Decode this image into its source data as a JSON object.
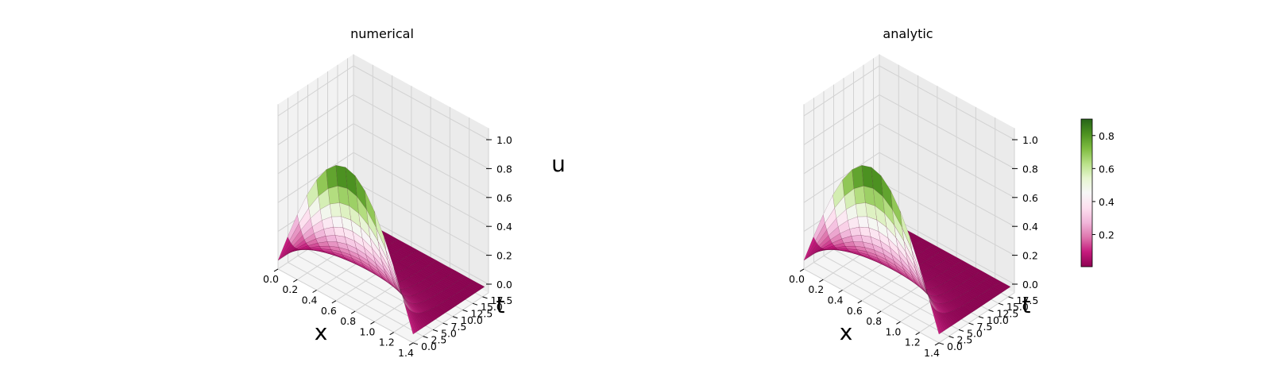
{
  "chart_data": [
    {
      "type": "surface3d",
      "title": "numerical",
      "xlabel": "x",
      "ylabel": "t",
      "zlabel": "u",
      "xlim": [
        0,
        1.4
      ],
      "ylim": [
        0,
        17.5
      ],
      "zlim": [
        0,
        1
      ],
      "xticks": [
        "0.0",
        "0.2",
        "0.4",
        "0.6",
        "0.8",
        "1.0",
        "1.2",
        "1.4"
      ],
      "yticks": [
        "0.0",
        "2.5",
        "5.0",
        "7.5",
        "10.0",
        "12.5",
        "15.0",
        "17.5"
      ],
      "zticks": [
        "0.0",
        "0.2",
        "0.4",
        "0.6",
        "0.8",
        "1.0"
      ],
      "surface": "peak u≈0.9 near x≈0.7 at t=0, decaying to ~0 by t≈5",
      "colormap": "PiYG"
    },
    {
      "type": "surface3d",
      "title": "analytic",
      "xlabel": "x",
      "ylabel": "t",
      "zlabel": "",
      "xlim": [
        0,
        1.4
      ],
      "ylim": [
        0,
        17.5
      ],
      "zlim": [
        0,
        1
      ],
      "xticks": [
        "0.0",
        "0.2",
        "0.4",
        "0.6",
        "0.8",
        "1.0",
        "1.2",
        "1.4"
      ],
      "yticks": [
        "0.0",
        "2.5",
        "5.0",
        "7.5",
        "10.0",
        "12.5",
        "15.0",
        "17.5"
      ],
      "zticks": [
        "0.0",
        "0.2",
        "0.4",
        "0.6",
        "0.8",
        "1.0"
      ],
      "surface": "peak u≈0.9 near x≈0.7 at t=0, decaying to ~0 by t≈5",
      "colormap": "PiYG"
    }
  ],
  "colorbar": {
    "ticks": [
      "0.2",
      "0.4",
      "0.6",
      "0.8"
    ],
    "colors": {
      "low": "#8e0152",
      "mid": "#f7f7f7",
      "high": "#276419"
    }
  }
}
